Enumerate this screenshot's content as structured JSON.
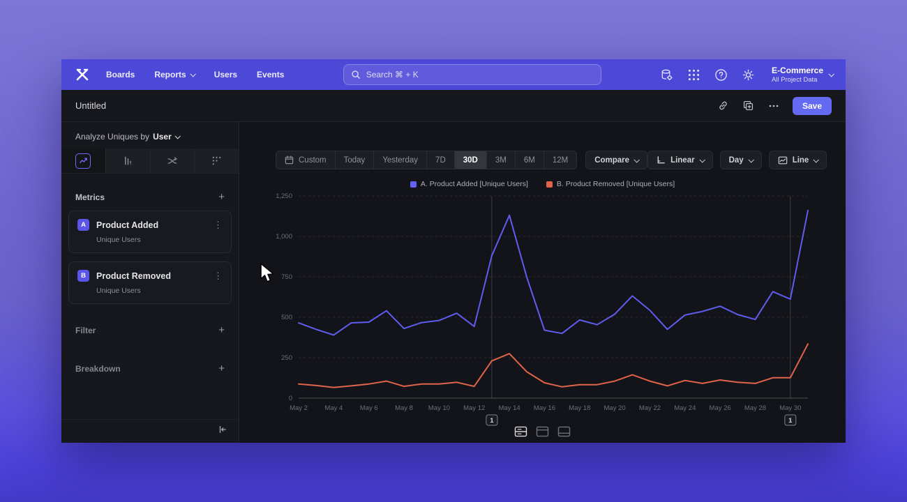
{
  "nav": {
    "items": [
      {
        "label": "Boards",
        "chevron": false
      },
      {
        "label": "Reports",
        "chevron": true
      },
      {
        "label": "Users",
        "chevron": false
      },
      {
        "label": "Events",
        "chevron": false
      }
    ],
    "search": {
      "placeholder": "Search  ⌘ + K"
    },
    "project": {
      "name": "E-Commerce",
      "scope": "All Project Data"
    }
  },
  "titlebar": {
    "title": "Untitled",
    "save_label": "Save",
    "more_label": "•••"
  },
  "sidebar": {
    "analyze_prefix": "Analyze Uniques by",
    "analyze_selector": "User",
    "metrics_header": "Metrics",
    "metrics": [
      {
        "badge": "A",
        "name": "Product Added",
        "measure": "Unique Users"
      },
      {
        "badge": "B",
        "name": "Product Removed",
        "measure": "Unique Users"
      }
    ],
    "filter_label": "Filter",
    "breakdown_label": "Breakdown",
    "kebab_glyph": "⋮",
    "plus_glyph": "+"
  },
  "controls": {
    "ranges": [
      "Custom",
      "Today",
      "Yesterday",
      "7D",
      "30D",
      "3M",
      "6M",
      "12M"
    ],
    "active_range": "30D",
    "compare_label": "Compare",
    "scale_label": "Linear",
    "interval_label": "Day",
    "chart_type_label": "Line"
  },
  "legend": [
    {
      "label": "A. Product Added [Unique Users]",
      "color": "#6561f2"
    },
    {
      "label": "B. Product Removed [Unique Users]",
      "color": "#e0644a"
    }
  ],
  "chart_data": {
    "type": "line",
    "title": "",
    "xlabel": "",
    "ylabel": "",
    "ylim": [
      0,
      1250
    ],
    "grid": "horizontal-dashed",
    "legend_position": "top-center",
    "categories": [
      "May 2",
      "May 3",
      "May 4",
      "May 5",
      "May 6",
      "May 7",
      "May 8",
      "May 9",
      "May 10",
      "May 11",
      "May 12",
      "May 13",
      "May 14",
      "May 15",
      "May 16",
      "May 17",
      "May 18",
      "May 19",
      "May 20",
      "May 21",
      "May 22",
      "May 23",
      "May 24",
      "May 25",
      "May 26",
      "May 27",
      "May 28",
      "May 29",
      "May 30",
      "May 31"
    ],
    "x_tick_every": 2,
    "yticks": [
      {
        "value": 0,
        "label": "0"
      },
      {
        "value": 250,
        "label": "250"
      },
      {
        "value": 500,
        "label": "500"
      },
      {
        "value": 750,
        "label": "750"
      },
      {
        "value": 1000,
        "label": "1,000"
      },
      {
        "value": 1250,
        "label": "1,250"
      }
    ],
    "series": [
      {
        "name": "A. Product Added [Unique Users]",
        "color": "#5f5cf0",
        "values": [
          465,
          425,
          390,
          465,
          470,
          540,
          430,
          467,
          480,
          525,
          443,
          880,
          1130,
          745,
          420,
          400,
          483,
          454,
          519,
          632,
          543,
          425,
          514,
          536,
          568,
          517,
          486,
          658,
          612,
          1160
        ]
      },
      {
        "name": "B. Product Removed [Unique Users]",
        "color": "#e0644a",
        "values": [
          87,
          78,
          66,
          76,
          87,
          105,
          73,
          87,
          87,
          98,
          73,
          230,
          275,
          162,
          95,
          70,
          83,
          83,
          105,
          144,
          105,
          76,
          109,
          91,
          112,
          98,
          91,
          126,
          126,
          335
        ]
      }
    ],
    "annotations": [
      {
        "index": 11,
        "label": "1"
      },
      {
        "index": 28,
        "label": "1"
      }
    ]
  },
  "colors": {
    "accent": "#646af2",
    "navbar": "#4d49d8",
    "surface": "#17181d",
    "grid_line": "rgba(255,255,255,0.09)",
    "axis_text": "#6d6f77",
    "annotation_line": "rgba(255,255,255,0.18)"
  }
}
